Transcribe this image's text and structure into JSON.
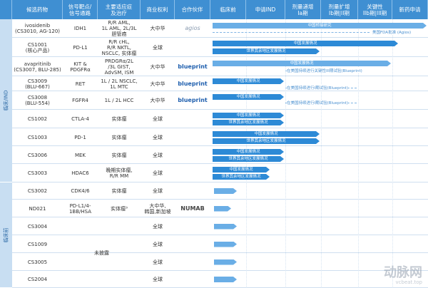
{
  "header": {
    "columns": [
      "候选药物",
      "信号靶点/\n信号通路",
      "主要适应症\n及治疗",
      "商业权利",
      "合作伙伴",
      "临床前",
      "申请IND",
      "剂量递增\nIa期",
      "剂量扩增\nIb期|II期",
      "关键性\nIIb期|III期",
      "新药申请"
    ]
  },
  "sections": [
    {
      "label": "临床/IND"
    },
    {
      "label": "临床前"
    }
  ],
  "rows": [
    {
      "drug": "ivosidenib\n(CS3010, AG-120)",
      "target": "IDH1",
      "indication": "R/R AML,\n1L AML, 2L/3L\n胆管癌",
      "rights": "大中华",
      "partner": "agios",
      "bars": [
        {
          "label": "中国桥接研究"
        }
      ],
      "note": "美国FDA批准 (Agios)"
    },
    {
      "drug": "CS1001\n(核心产品)",
      "target": "PD-L1",
      "indication": "R/R cHL,\nR/R NKTL,\nNSCLC, 实体瘤",
      "rights": "全球",
      "bars": [
        {
          "label": "中国发展情况"
        },
        {
          "label": "世界其余地区发展情况"
        }
      ]
    },
    {
      "drug": "avapritinib\n(CS3007, BLU-285)",
      "target": "KIT & PDGFRα",
      "indication": "PRDGRα/2L\n/3L GIST,\nAdvSM, ISM",
      "rights": "大中华",
      "partner": "blueprint",
      "bars": [
        {
          "label": "中国发展情况"
        }
      ],
      "note": "在美国持续进行关键性III期试验(Blueprint)"
    },
    {
      "drug": "CS3009\n(BLU-667)",
      "target": "RET",
      "indication": "1L / 2L NSCLC,\n1L MTC",
      "rights": "大中华",
      "partner": "blueprint",
      "bars": [
        {
          "label": "中国发展情况"
        }
      ],
      "note": "在美国持续进行I期试验(Blueprint)"
    },
    {
      "drug": "CS3008\n(BLU-554)",
      "target": "FGFR4",
      "indication": "1L / 2L HCC",
      "rights": "大中华",
      "partner": "blueprint",
      "bars": [
        {
          "label": "中国发展情况"
        }
      ],
      "note": "在美国持续进行I期试验(Blueprint)"
    },
    {
      "drug": "CS1002",
      "target": "CTLA-4",
      "indication": "实体瘤",
      "rights": "全球",
      "bars": [
        {
          "label": "中国发展情况"
        },
        {
          "label": "世界其余地区发展情况"
        }
      ]
    },
    {
      "drug": "CS1003",
      "target": "PD-1",
      "indication": "实体瘤",
      "rights": "全球",
      "bars": [
        {
          "label": "中国发展情况"
        },
        {
          "label": "世界其余地区发展情况"
        }
      ]
    },
    {
      "drug": "CS3006",
      "target": "MEK",
      "indication": "实体瘤",
      "rights": "全球",
      "bars": [
        {
          "label": "中国发展情况"
        },
        {
          "label": "世界其余地区发展情况"
        }
      ]
    },
    {
      "drug": "CS3003",
      "target": "HDAC6",
      "indication": "晚期实体瘤,\nR/R MM",
      "rights": "全球",
      "bars": [
        {
          "label": "中国发展情况"
        },
        {
          "label": "世界其余地区发展情况"
        }
      ]
    },
    {
      "drug": "CS3002",
      "target": "CDK4/6",
      "indication": "实体瘤",
      "rights": "全球"
    },
    {
      "drug": "ND021",
      "target": "PD-L1/4-\n1BB/HSA",
      "indication": "实体瘤³",
      "rights": "大中华,\n韩国,新加坡",
      "partner": "NUMAB"
    },
    {
      "drug": "CS3004",
      "rights": "全球"
    },
    {
      "drug": "CS1009",
      "rights": "全球"
    },
    {
      "drug": "CS3005",
      "rights": "全球"
    },
    {
      "drug": "CS2004",
      "rights": "全球"
    }
  ],
  "undisclosed": "未披露",
  "watermark": {
    "name": "动脉网",
    "site": "vcbeat.top"
  }
}
